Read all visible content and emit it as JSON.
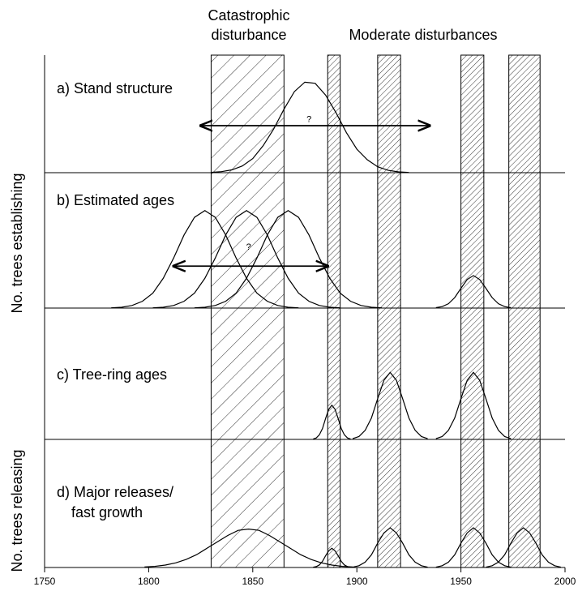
{
  "chart_data": {
    "type": "line",
    "annotations": [
      "Catastrophic",
      "disturbance",
      "Moderate disturbances"
    ],
    "y_labels": [
      "No. trees establishing",
      "No. trees releasing"
    ],
    "xlim": [
      1750,
      2000
    ],
    "xticks": [
      1750,
      1800,
      1850,
      1900,
      1950,
      2000
    ],
    "catastrophic": [
      1830,
      1865
    ],
    "moderate": [
      [
        1886,
        1892
      ],
      [
        1910,
        1921
      ],
      [
        1950,
        1961
      ],
      [
        1973,
        1988
      ]
    ],
    "color": "#000000",
    "panels": [
      {
        "label": [
          "a) Stand structure"
        ],
        "ylim": [
          0,
          1
        ],
        "series": [
          {
            "x": [
              1830,
              1835,
              1840,
              1845,
              1850,
              1855,
              1860,
              1865,
              1870,
              1875,
              1880,
              1885,
              1890,
              1895,
              1900,
              1905,
              1910,
              1915,
              1920,
              1925
            ],
            "values": [
              0.003,
              0.009,
              0.024,
              0.057,
              0.12,
              0.23,
              0.37,
              0.54,
              0.69,
              0.77,
              0.76,
              0.66,
              0.51,
              0.34,
              0.2,
              0.11,
              0.05,
              0.02,
              0.007,
              0.002
            ]
          }
        ],
        "arrow": {
          "x": [
            1825,
            1935
          ],
          "y": 0.4
        },
        "question": {
          "text": "?",
          "x": 1877,
          "y": 0.45
        }
      },
      {
        "label": [
          "b) Estimated ages"
        ],
        "ylim": [
          0,
          1
        ],
        "series": [
          {
            "x": [
              1782,
              1787,
              1792,
              1797,
              1802,
              1807,
              1812,
              1817,
              1822,
              1827,
              1832,
              1837,
              1842,
              1847,
              1852,
              1857,
              1862,
              1867,
              1872
            ],
            "values": [
              0.002,
              0.006,
              0.019,
              0.05,
              0.11,
              0.22,
              0.37,
              0.54,
              0.67,
              0.72,
              0.67,
              0.54,
              0.37,
              0.22,
              0.11,
              0.05,
              0.019,
              0.006,
              0.002
            ]
          },
          {
            "x": [
              1802,
              1807,
              1812,
              1817,
              1822,
              1827,
              1832,
              1837,
              1842,
              1847,
              1852,
              1857,
              1862,
              1867,
              1872,
              1877,
              1882,
              1887,
              1892
            ],
            "values": [
              0.002,
              0.006,
              0.019,
              0.05,
              0.11,
              0.22,
              0.37,
              0.54,
              0.67,
              0.72,
              0.67,
              0.54,
              0.37,
              0.22,
              0.11,
              0.05,
              0.019,
              0.006,
              0.002
            ]
          },
          {
            "x": [
              1822,
              1827,
              1832,
              1837,
              1842,
              1847,
              1852,
              1857,
              1862,
              1867,
              1872,
              1877,
              1882,
              1887,
              1892,
              1897,
              1902,
              1907,
              1912
            ],
            "values": [
              0.002,
              0.006,
              0.019,
              0.05,
              0.11,
              0.22,
              0.37,
              0.54,
              0.67,
              0.72,
              0.67,
              0.54,
              0.37,
              0.22,
              0.11,
              0.05,
              0.019,
              0.006,
              0.002
            ]
          },
          {
            "x": [
              1938,
              1941,
              1944,
              1947,
              1950,
              1953,
              1956,
              1959,
              1962,
              1965,
              1968,
              1971,
              1974
            ],
            "values": [
              0.003,
              0.011,
              0.032,
              0.077,
              0.146,
              0.211,
              0.24,
              0.211,
              0.146,
              0.077,
              0.032,
              0.011,
              0.003
            ]
          }
        ],
        "arrow": {
          "x": [
            1812,
            1886
          ],
          "y": 0.31
        },
        "question": {
          "text": "?",
          "x": 1848,
          "y": 0.45
        }
      },
      {
        "label": [
          "c) Tree-ring ages"
        ],
        "ylim": [
          0,
          1
        ],
        "series": [
          {
            "x": [
              1879,
              1880.5,
              1882,
              1883.5,
              1885,
              1886.5,
              1888,
              1889.5,
              1891,
              1892.5,
              1894,
              1895.5,
              1897
            ],
            "values": [
              0.003,
              0.011,
              0.035,
              0.083,
              0.16,
              0.23,
              0.26,
              0.23,
              0.16,
              0.083,
              0.035,
              0.011,
              0.003
            ]
          },
          {
            "x": [
              1898,
              1901,
              1904,
              1907,
              1910,
              1913,
              1916,
              1919,
              1922,
              1925,
              1928,
              1931,
              1934
            ],
            "values": [
              0.006,
              0.022,
              0.069,
              0.163,
              0.31,
              0.45,
              0.51,
              0.45,
              0.31,
              0.163,
              0.069,
              0.022,
              0.006
            ]
          },
          {
            "x": [
              1938,
              1941,
              1944,
              1947,
              1950,
              1953,
              1956,
              1959,
              1962,
              1965,
              1968,
              1971,
              1974
            ],
            "values": [
              0.006,
              0.022,
              0.069,
              0.163,
              0.31,
              0.45,
              0.51,
              0.45,
              0.31,
              0.163,
              0.069,
              0.022,
              0.006
            ]
          }
        ]
      },
      {
        "label": [
          "d) Major releases/",
          "fast growth"
        ],
        "ylim": [
          0,
          1
        ],
        "series": [
          {
            "x": [
              1798,
              1803,
              1808,
              1813,
              1818,
              1823,
              1828,
              1833,
              1838,
              1843,
              1848,
              1853,
              1858,
              1863,
              1868,
              1873,
              1878,
              1883,
              1888,
              1893,
              1898
            ],
            "values": [
              0.004,
              0.009,
              0.019,
              0.036,
              0.063,
              0.1,
              0.15,
              0.2,
              0.25,
              0.29,
              0.3,
              0.29,
              0.25,
              0.2,
              0.15,
              0.1,
              0.063,
              0.036,
              0.019,
              0.009,
              0.004
            ]
          },
          {
            "x": [
              1879,
              1880.5,
              1882,
              1883.5,
              1885,
              1886.5,
              1888,
              1889.5,
              1891,
              1892.5,
              1894,
              1895.5,
              1897
            ],
            "values": [
              0.002,
              0.007,
              0.02,
              0.048,
              0.092,
              0.13,
              0.15,
              0.13,
              0.092,
              0.048,
              0.02,
              0.007,
              0.002
            ]
          },
          {
            "x": [
              1898,
              1901,
              1904,
              1907,
              1910,
              1913,
              1916,
              1919,
              1922,
              1925,
              1928,
              1931,
              1934
            ],
            "values": [
              0.003,
              0.014,
              0.042,
              0.099,
              0.19,
              0.27,
              0.31,
              0.27,
              0.19,
              0.099,
              0.042,
              0.014,
              0.003
            ]
          },
          {
            "x": [
              1938,
              1941,
              1944,
              1947,
              1950,
              1953,
              1956,
              1959,
              1962,
              1965,
              1968,
              1971,
              1974
            ],
            "values": [
              0.003,
              0.014,
              0.042,
              0.099,
              0.19,
              0.27,
              0.31,
              0.27,
              0.19,
              0.099,
              0.042,
              0.014,
              0.003
            ]
          },
          {
            "x": [
              1962,
              1965,
              1968,
              1971,
              1974,
              1977,
              1980,
              1983,
              1986,
              1989,
              1992,
              1995,
              1998
            ],
            "values": [
              0.003,
              0.014,
              0.042,
              0.099,
              0.19,
              0.27,
              0.31,
              0.27,
              0.19,
              0.099,
              0.042,
              0.014,
              0.003
            ]
          }
        ]
      }
    ]
  }
}
